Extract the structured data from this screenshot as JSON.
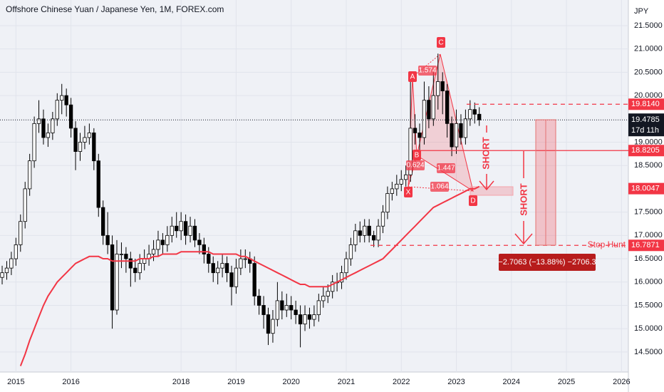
{
  "chart_data": {
    "type": "candlestick",
    "title": "Offshore Chinese Yuan / Japanese Yen, 1M, FOREX.com",
    "y_axis_label": "JPY",
    "xlim": [
      -0.47,
      136.5
    ],
    "ylim": [
      14.07,
      22.05
    ],
    "xticks": [
      {
        "value": 3,
        "label": "2015"
      },
      {
        "value": 15,
        "label": "2016"
      },
      {
        "value": 39,
        "label": "2018"
      },
      {
        "value": 51,
        "label": "2019"
      },
      {
        "value": 63,
        "label": "2020"
      },
      {
        "value": 75,
        "label": "2021"
      },
      {
        "value": 87,
        "label": "2022"
      },
      {
        "value": 99,
        "label": "2023"
      },
      {
        "value": 111,
        "label": "2024"
      },
      {
        "value": 123,
        "label": "2025"
      },
      {
        "value": 135,
        "label": "2026"
      }
    ],
    "yticks": [
      {
        "value": 14.5,
        "label": "14.5000"
      },
      {
        "value": 15,
        "label": "15.0000"
      },
      {
        "value": 15.5,
        "label": "15.5000"
      },
      {
        "value": 16,
        "label": "16.0000"
      },
      {
        "value": 16.5,
        "label": "16.5000"
      },
      {
        "value": 17,
        "label": "17.0000"
      },
      {
        "value": 17.5,
        "label": "17.5000"
      },
      {
        "value": 18.5,
        "label": "18.5000"
      },
      {
        "value": 19,
        "label": "19.0000"
      },
      {
        "value": 20,
        "label": "20.0000"
      },
      {
        "value": 20.5,
        "label": "20.5000"
      },
      {
        "value": 21,
        "label": "21.0000"
      },
      {
        "value": 21.5,
        "label": "21.5000"
      }
    ],
    "grid": true,
    "up_color": "#ffffff",
    "down_color": "#000000",
    "open": [
      16.1,
      16.2,
      16.3,
      16.5,
      16.8,
      17.3,
      18.0,
      18.6,
      19.4,
      19.5,
      19.1,
      19.2,
      19.5,
      19.9,
      20.0,
      19.8,
      19.3,
      18.8,
      19.0,
      19.1,
      19.2,
      18.6,
      17.6,
      17.0,
      16.8,
      15.4,
      16.6,
      16.6,
      16.5,
      16.3,
      16.2,
      16.4,
      16.5,
      16.6,
      16.7,
      16.9,
      16.8,
      17.0,
      17.2,
      17.1,
      17.3,
      17.0,
      17.2,
      16.9,
      16.8,
      16.6,
      16.4,
      16.2,
      16.3,
      16.4,
      16.2,
      15.9,
      16.3,
      16.5,
      16.5,
      16.4,
      15.7,
      15.5,
      15.3,
      14.9,
      15.2,
      15.6,
      15.4,
      15.5,
      15.4,
      15.3,
      15.1,
      15.3,
      15.2,
      15.3,
      15.6,
      15.7,
      15.8,
      16.0,
      16.0,
      16.2,
      16.5,
      16.8,
      17.1,
      17.0,
      17.2,
      17.0,
      16.9,
      17.2,
      17.5,
      17.9,
      18.0,
      18.1,
      18.2,
      18.3,
      19.3,
      19.2,
      19.1,
      19.9,
      19.5,
      20.0,
      20.3,
      20.1,
      19.4,
      18.9,
      19.4,
      19.1,
      19.5,
      19.7,
      19.6
    ],
    "high": [
      16.35,
      16.45,
      16.65,
      16.95,
      17.45,
      18.15,
      18.75,
      19.55,
      19.9,
      19.7,
      19.4,
      19.65,
      20.05,
      20.25,
      20.15,
      19.95,
      19.45,
      19.2,
      19.35,
      19.4,
      19.3,
      18.75,
      17.75,
      17.5,
      17.0,
      16.9,
      16.85,
      16.75,
      16.65,
      16.5,
      16.6,
      16.7,
      16.8,
      16.9,
      17.1,
      17.05,
      17.2,
      17.4,
      17.5,
      17.5,
      17.45,
      17.4,
      17.35,
      17.05,
      16.95,
      16.75,
      16.55,
      16.45,
      16.6,
      16.55,
      16.35,
      16.5,
      16.7,
      16.7,
      16.65,
      16.55,
      15.85,
      15.7,
      15.45,
      15.4,
      16.0,
      15.8,
      15.75,
      15.7,
      15.6,
      15.5,
      15.5,
      15.45,
      15.5,
      15.75,
      15.9,
      15.95,
      16.15,
      16.2,
      16.35,
      16.65,
      16.95,
      17.25,
      17.3,
      17.35,
      17.35,
      17.1,
      17.35,
      17.65,
      18.05,
      18.15,
      18.3,
      18.4,
      18.5,
      20.4,
      19.6,
      19.4,
      20.3,
      20.2,
      20.5,
      20.9,
      20.5,
      20.25,
      19.55,
      19.7,
      19.6,
      19.7,
      19.9,
      19.85,
      19.75
    ],
    "low": [
      15.95,
      16.05,
      16.15,
      16.35,
      16.65,
      17.15,
      17.85,
      18.45,
      19.2,
      18.95,
      18.9,
      19.05,
      19.35,
      19.6,
      19.55,
      19.1,
      18.4,
      18.6,
      18.85,
      18.95,
      18.4,
      17.4,
      16.8,
      16.6,
      15.0,
      15.3,
      16.3,
      16.2,
      15.9,
      16.0,
      16.05,
      16.25,
      16.35,
      16.45,
      16.55,
      16.6,
      16.65,
      16.85,
      16.95,
      16.9,
      16.8,
      16.85,
      16.75,
      16.6,
      16.4,
      16.2,
      16.0,
      15.95,
      16.1,
      16.0,
      15.5,
      15.75,
      16.15,
      16.3,
      16.2,
      15.5,
      15.3,
      15.0,
      14.65,
      14.7,
      15.05,
      15.2,
      15.25,
      15.2,
      15.1,
      14.6,
      14.95,
      15.0,
      15.05,
      15.15,
      15.45,
      15.55,
      15.65,
      15.8,
      15.85,
      16.05,
      16.35,
      16.65,
      16.85,
      16.85,
      16.85,
      16.75,
      16.75,
      17.05,
      17.35,
      17.75,
      17.85,
      17.95,
      18.05,
      18.15,
      18.95,
      18.8,
      18.95,
      19.3,
      19.35,
      19.7,
      19.6,
      19.1,
      18.7,
      18.75,
      18.95,
      18.95,
      19.35,
      19.4,
      19.35
    ],
    "close": [
      16.2,
      16.3,
      16.5,
      16.8,
      17.3,
      18.0,
      18.6,
      19.4,
      19.5,
      19.1,
      19.2,
      19.5,
      19.9,
      20.0,
      19.8,
      19.3,
      18.8,
      19.0,
      19.1,
      19.2,
      18.6,
      17.6,
      17.0,
      16.8,
      15.4,
      16.6,
      16.6,
      16.5,
      16.3,
      16.2,
      16.4,
      16.5,
      16.6,
      16.7,
      16.9,
      16.8,
      17.0,
      17.2,
      17.1,
      17.3,
      17.0,
      17.2,
      16.9,
      16.8,
      16.6,
      16.4,
      16.2,
      16.3,
      16.4,
      16.2,
      15.9,
      16.3,
      16.5,
      16.5,
      16.4,
      15.7,
      15.5,
      15.3,
      14.9,
      15.2,
      15.6,
      15.4,
      15.5,
      15.4,
      15.3,
      15.1,
      15.3,
      15.2,
      15.3,
      15.6,
      15.7,
      15.8,
      16.0,
      16.0,
      16.2,
      16.5,
      16.8,
      17.1,
      17.0,
      17.2,
      17.0,
      16.9,
      17.2,
      17.5,
      17.9,
      18.0,
      18.1,
      18.2,
      18.3,
      19.3,
      19.2,
      19.1,
      19.9,
      19.5,
      20.0,
      20.3,
      20.1,
      19.4,
      18.9,
      19.4,
      19.1,
      19.5,
      19.7,
      19.6,
      19.4785
    ],
    "moving_average": {
      "color": "#f23645",
      "values": [
        null,
        null,
        null,
        null,
        14.2,
        14.45,
        14.75,
        15.0,
        15.25,
        15.5,
        15.7,
        15.85,
        16.0,
        16.1,
        16.2,
        16.3,
        16.4,
        16.45,
        16.5,
        16.55,
        16.55,
        16.55,
        16.5,
        16.5,
        16.45,
        16.45,
        16.45,
        16.45,
        16.45,
        16.45,
        16.5,
        16.5,
        16.5,
        16.55,
        16.55,
        16.6,
        16.6,
        16.6,
        16.6,
        16.65,
        16.65,
        16.65,
        16.65,
        16.65,
        16.65,
        16.65,
        16.6,
        16.6,
        16.6,
        16.6,
        16.6,
        16.6,
        16.55,
        16.55,
        16.5,
        16.45,
        16.4,
        16.35,
        16.3,
        16.25,
        16.2,
        16.15,
        16.1,
        16.05,
        16.0,
        15.95,
        15.95,
        15.9,
        15.9,
        15.9,
        15.9,
        15.9,
        15.95,
        16.0,
        16.05,
        16.1,
        16.15,
        16.2,
        16.25,
        16.3,
        16.35,
        16.4,
        16.45,
        16.5,
        16.6,
        16.7,
        16.8,
        16.9,
        17.0,
        17.1,
        17.2,
        17.3,
        17.4,
        17.5,
        17.6,
        17.65,
        17.7,
        17.75,
        17.8,
        17.85,
        17.9,
        17.95,
        18.0,
        18.0,
        18.05
      ]
    },
    "current_price": {
      "value": 19.4785,
      "label": "19.4785",
      "countdown": "17d 11h"
    },
    "levels": [
      {
        "value": 19.814,
        "label": "19.8140",
        "style": "dashed"
      },
      {
        "value": 18.8205,
        "label": "18.8205",
        "style": "solid"
      },
      {
        "value": 18.0047,
        "label": "18.0047",
        "style": "none"
      },
      {
        "value": 16.7871,
        "label": "16.7871",
        "style": "dashed"
      }
    ],
    "level_color": "#f23645",
    "pattern": {
      "points": [
        "X",
        "A",
        "B",
        "C",
        "D"
      ],
      "ratios": [
        "1.574",
        "0.624",
        "1.447",
        "1.064"
      ]
    },
    "annotations": {
      "short_1": "SHORT",
      "short_2": "SHORT",
      "stop_hunt": "Stop Hunt",
      "measure": "−2.7063 (−13.88%) −2706.3"
    }
  }
}
